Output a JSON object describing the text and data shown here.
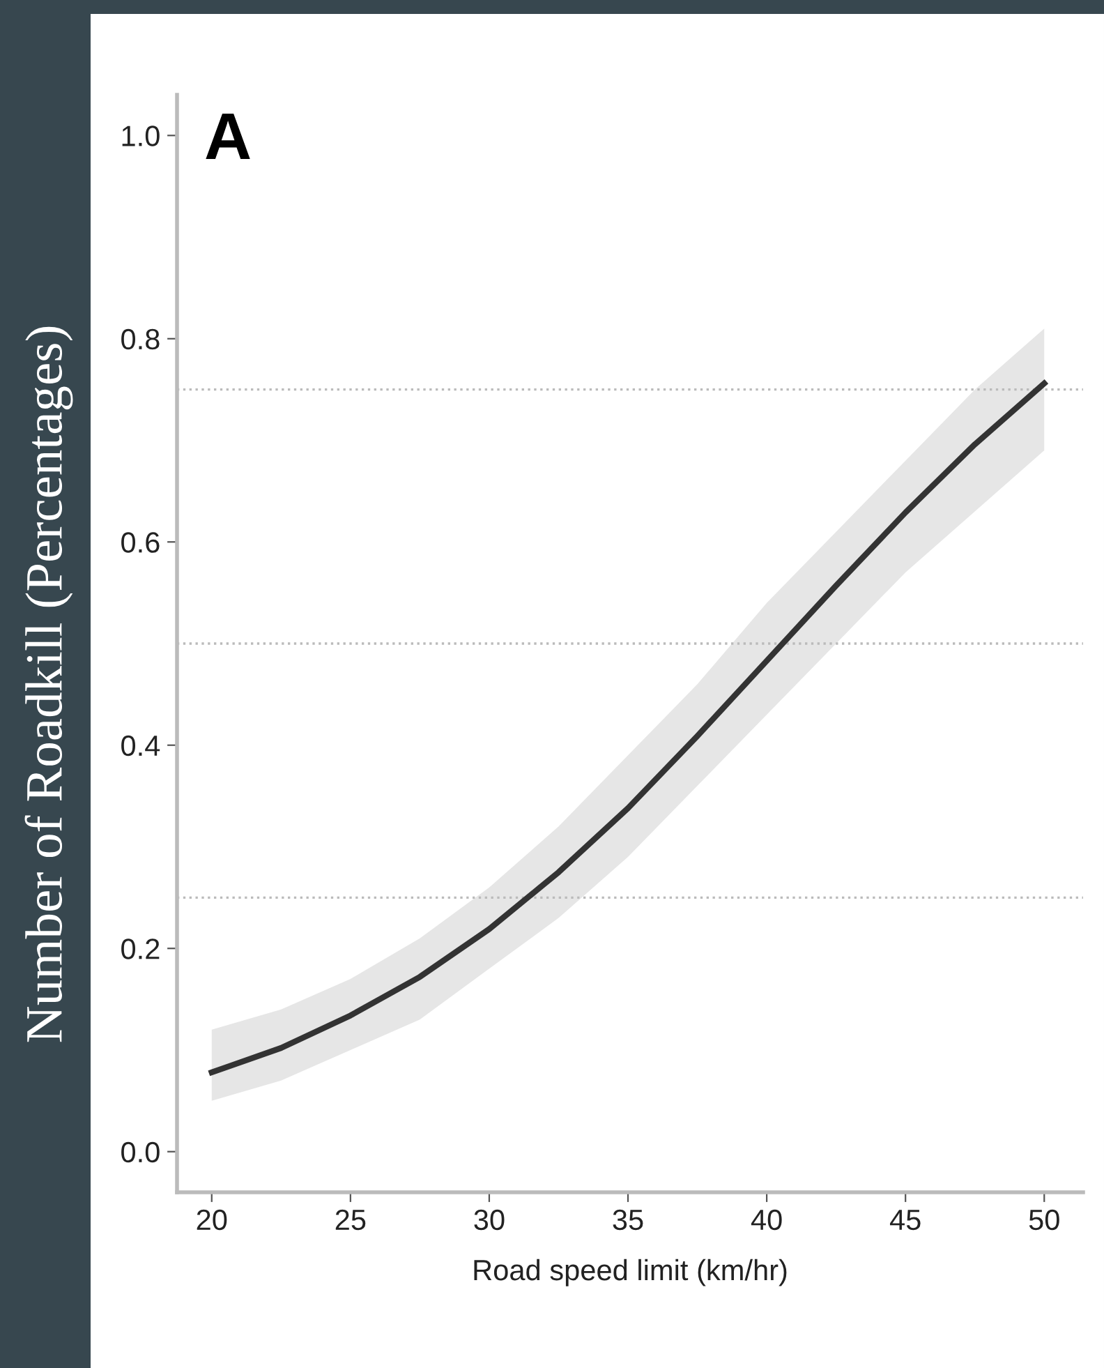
{
  "chart_data": {
    "type": "line",
    "ylabel": "Number of Roadkill (Percentages)",
    "xlabel": "Road speed limit (km/hr)",
    "annotations": [
      "A"
    ],
    "x": [
      20,
      22.5,
      25,
      27.5,
      30,
      32.5,
      35,
      37.5,
      40,
      42.5,
      45,
      47.5,
      50
    ],
    "series": [
      {
        "color": "#333333",
        "values": [
          0.078,
          0.102,
          0.134,
          0.172,
          0.219,
          0.275,
          0.338,
          0.409,
          0.483,
          0.557,
          0.629,
          0.696,
          0.756
        ],
        "lower": [
          0.05,
          0.07,
          0.1,
          0.13,
          0.18,
          0.23,
          0.29,
          0.36,
          0.43,
          0.5,
          0.57,
          0.63,
          0.69
        ],
        "upper": [
          0.12,
          0.14,
          0.17,
          0.21,
          0.26,
          0.32,
          0.39,
          0.46,
          0.54,
          0.61,
          0.68,
          0.75,
          0.81
        ]
      }
    ],
    "xlim": [
      18.75,
      51.4
    ],
    "xticks": [
      20,
      25,
      30,
      35,
      40,
      45,
      50
    ],
    "ylim": [
      -0.04,
      1.04
    ],
    "yticks": [
      {
        "value": 0,
        "label": "0.0"
      },
      0.2,
      0.4,
      0.6,
      0.8,
      {
        "value": 1,
        "label": "1.0"
      }
    ],
    "ref_lines": [
      {
        "axis": "y",
        "value": 0.25,
        "color": "#bbbbbb",
        "line_style": "dotted"
      },
      {
        "axis": "y",
        "value": 0.5,
        "color": "#bbbbbb",
        "line_style": "dotted"
      },
      {
        "axis": "y",
        "value": 0.75,
        "color": "#bbbbbb",
        "line_style": "dotted"
      }
    ],
    "grid": false,
    "legend": false,
    "marker": "none",
    "line_style": "solid"
  }
}
